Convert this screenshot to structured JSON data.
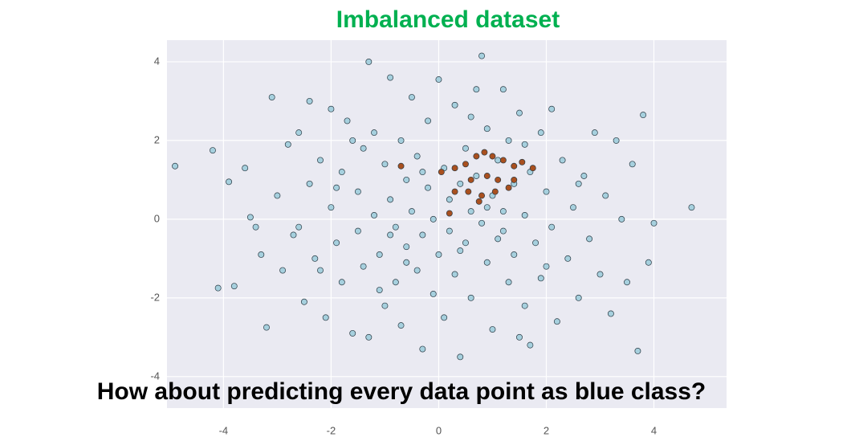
{
  "chart_data": {
    "type": "scatter",
    "title": "Imbalanced dataset",
    "annotation": "How about predicting every data point as blue class?",
    "xlim": [
      -5.05,
      5.35
    ],
    "ylim": [
      -4.8,
      4.55
    ],
    "xticks": [
      -4,
      -2,
      0,
      2,
      4
    ],
    "yticks": [
      -4,
      -2,
      0,
      2,
      4
    ],
    "grid": true,
    "series": [
      {
        "color": "#a6d0de",
        "x": [
          -4.9,
          -4.2,
          -3.9,
          -4.1,
          -3.8,
          -3.6,
          -3.5,
          -3.3,
          -3.2,
          -3.1,
          -3.0,
          -2.9,
          -2.8,
          -2.7,
          -2.6,
          -2.5,
          -2.4,
          -2.4,
          -2.3,
          -2.2,
          -2.1,
          -2.0,
          -2.0,
          -1.9,
          -1.8,
          -1.8,
          -1.7,
          -1.6,
          -1.5,
          -1.5,
          -1.4,
          -1.4,
          -1.3,
          -1.3,
          -1.2,
          -1.2,
          -1.1,
          -1.0,
          -1.0,
          -0.9,
          -0.9,
          -0.8,
          -0.8,
          -0.7,
          -0.7,
          -0.6,
          -0.6,
          -0.5,
          -0.5,
          -0.4,
          -0.4,
          -0.3,
          -0.3,
          -0.2,
          -0.2,
          -0.1,
          -0.1,
          0.0,
          0.0,
          0.1,
          0.1,
          0.2,
          0.2,
          0.3,
          0.3,
          0.4,
          0.4,
          0.5,
          0.5,
          0.6,
          0.6,
          0.7,
          0.7,
          0.8,
          0.8,
          0.9,
          0.9,
          1.0,
          1.0,
          1.1,
          1.1,
          1.2,
          1.2,
          1.3,
          1.3,
          1.4,
          1.4,
          1.5,
          1.5,
          1.6,
          1.6,
          1.7,
          1.7,
          1.8,
          1.9,
          1.9,
          2.0,
          2.1,
          2.1,
          2.2,
          2.3,
          2.4,
          2.5,
          2.6,
          2.7,
          2.8,
          2.9,
          3.0,
          3.1,
          3.2,
          3.3,
          3.4,
          3.5,
          3.6,
          3.7,
          3.8,
          3.9,
          4.0,
          4.7,
          -2.6,
          -1.9,
          -0.9,
          0.4,
          1.2,
          2.0,
          -1.6,
          0.6,
          -0.3,
          -2.2,
          1.6,
          0.9,
          -1.1,
          2.6,
          -0.6,
          -3.4
        ],
        "values": [
          1.35,
          1.75,
          0.95,
          -1.75,
          -1.7,
          1.3,
          0.05,
          -0.9,
          -2.75,
          3.1,
          0.6,
          -1.3,
          1.9,
          -0.4,
          2.2,
          -2.1,
          3.0,
          0.9,
          -1.0,
          1.5,
          -2.5,
          2.8,
          0.3,
          -0.6,
          1.2,
          -1.6,
          2.5,
          -2.9,
          0.7,
          -0.3,
          1.8,
          -1.2,
          4.0,
          -3.0,
          2.2,
          0.1,
          -0.9,
          1.4,
          -2.2,
          3.6,
          0.5,
          -0.2,
          -1.6,
          2.0,
          -2.7,
          1.0,
          -0.7,
          3.1,
          0.2,
          -1.3,
          1.6,
          -3.3,
          -0.4,
          2.5,
          0.8,
          -1.9,
          0.0,
          3.55,
          -0.9,
          1.3,
          -2.5,
          0.5,
          -0.3,
          2.9,
          -1.4,
          0.9,
          -3.5,
          1.8,
          -0.6,
          0.2,
          -2.0,
          3.3,
          1.1,
          4.15,
          -0.1,
          -1.1,
          2.3,
          0.6,
          -2.8,
          1.5,
          -0.5,
          3.3,
          0.2,
          -1.6,
          2.0,
          -0.9,
          0.9,
          -3.0,
          2.7,
          0.1,
          -2.2,
          -3.2,
          1.2,
          -0.6,
          2.2,
          -1.5,
          0.7,
          -0.2,
          2.8,
          -2.6,
          1.5,
          -1.0,
          0.3,
          -2.0,
          1.1,
          -0.5,
          2.2,
          -1.4,
          0.6,
          -2.4,
          2.0,
          0.0,
          -1.6,
          1.4,
          -3.35,
          2.65,
          -1.1,
          -0.1,
          0.3,
          -0.2,
          0.8,
          -0.4,
          -0.8,
          -0.3,
          -1.2,
          2.0,
          2.6,
          1.2,
          -1.3,
          1.9,
          0.3,
          -1.8,
          0.9,
          -1.1,
          -0.2
        ]
      },
      {
        "color": "#a9501f",
        "x": [
          0.3,
          0.5,
          0.7,
          0.85,
          1.0,
          1.2,
          1.4,
          1.55,
          1.75,
          0.9,
          1.1,
          1.4,
          0.6,
          0.3,
          0.8,
          1.05,
          1.3,
          0.2,
          0.75,
          0.55,
          -0.7,
          0.05
        ],
        "values": [
          1.3,
          1.4,
          1.6,
          1.7,
          1.6,
          1.5,
          1.35,
          1.45,
          1.3,
          1.1,
          1.0,
          1.0,
          1.0,
          0.7,
          0.6,
          0.7,
          0.8,
          0.15,
          0.45,
          0.7,
          1.35,
          1.2
        ]
      }
    ]
  }
}
